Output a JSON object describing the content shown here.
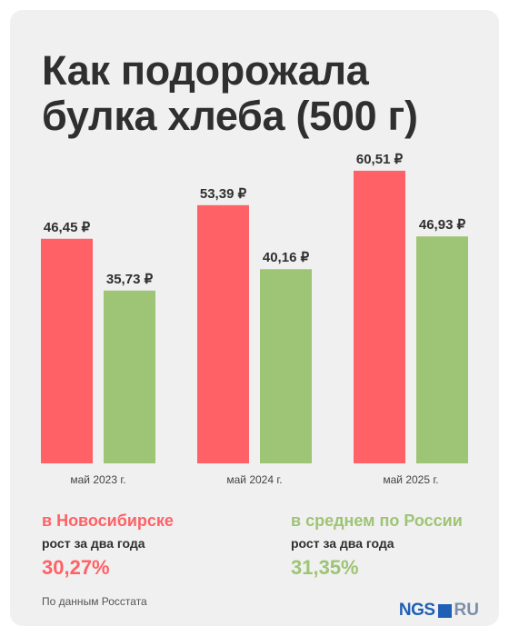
{
  "title": "Как подорожала булка хлеба (500 г)",
  "colors": {
    "novosibirsk": "#ff6166",
    "russia": "#9ec475",
    "background": "#f0f0f0",
    "brand": "#1f5fb5"
  },
  "chart_data": {
    "type": "bar",
    "title": "Как подорожала булка хлеба (500 г)",
    "categories": [
      "май 2023 г.",
      "май 2024 г.",
      "май 2025 г."
    ],
    "series": [
      {
        "name": "в Новосибирске",
        "values": [
          46.45,
          53.39,
          60.51
        ],
        "labels": [
          "46,45 ₽",
          "53,39 ₽",
          "60,51 ₽"
        ],
        "color": "#ff6166"
      },
      {
        "name": "в среднем по России",
        "values": [
          35.73,
          40.16,
          46.93
        ],
        "labels": [
          "35,73 ₽",
          "40,16 ₽",
          "46,93 ₽"
        ],
        "color": "#9ec475"
      }
    ],
    "ylim": [
      0,
      62
    ],
    "grid": false,
    "legend": "bottom"
  },
  "stats": {
    "novosibirsk": {
      "heading": "в Новосибирске",
      "subtitle": "рост за два года",
      "value": "30,27%"
    },
    "russia": {
      "heading": "в среднем по России",
      "subtitle": "рост за два года",
      "value": "31,35%"
    }
  },
  "footer": {
    "source": "По данным Росстата"
  },
  "logo": {
    "left": "NGS",
    "right": "RU"
  }
}
